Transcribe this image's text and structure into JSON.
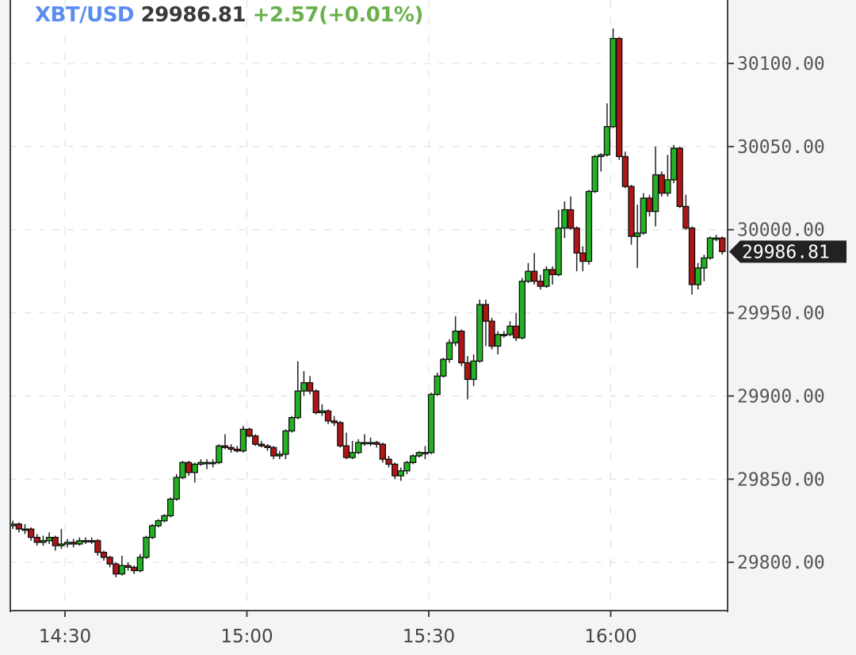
{
  "header": {
    "symbol": "XBT/USD",
    "last_price": "29986.81",
    "change": "+2.57(+0.01%)"
  },
  "colors": {
    "symbol": "#5b8def",
    "change": "#6ab04c",
    "up_candle": "#22b322",
    "down_candle": "#b01515",
    "price_tag": "#222222"
  },
  "chart_data": {
    "type": "candlestick",
    "symbol": "XBT/USD",
    "interval_minutes": 1,
    "start_time": "14:21",
    "ylim": [
      29771,
      30138
    ],
    "grid": true,
    "y_ticks": [
      "29800.00",
      "29850.00",
      "29900.00",
      "29950.00",
      "30000.00",
      "30050.00",
      "30100.00"
    ],
    "x_ticks": [
      "14:30",
      "15:00",
      "15:30",
      "16:00"
    ],
    "last_price_label": "29986.81",
    "ohlc": [
      [
        29822,
        29825,
        29820,
        29823
      ],
      [
        29823,
        29824,
        29818,
        29820
      ],
      [
        29820,
        29823,
        29817,
        29820
      ],
      [
        29820,
        29821,
        29813,
        29815
      ],
      [
        29815,
        29817,
        29810,
        29812
      ],
      [
        29812,
        29816,
        29810,
        29813
      ],
      [
        29813,
        29818,
        29811,
        29815
      ],
      [
        29815,
        29816,
        29807,
        29810
      ],
      [
        29810,
        29820,
        29808,
        29811
      ],
      [
        29811,
        29814,
        29809,
        29812
      ],
      [
        29812,
        29814,
        29809,
        29811
      ],
      [
        29811,
        29815,
        29810,
        29813
      ],
      [
        29813,
        29815,
        29811,
        29813
      ],
      [
        29813,
        29815,
        29811,
        29813
      ],
      [
        29813,
        29814,
        29804,
        29806
      ],
      [
        29806,
        29807,
        29801,
        29803
      ],
      [
        29803,
        29804,
        29797,
        29799
      ],
      [
        29799,
        29800,
        29791,
        29793
      ],
      [
        29793,
        29804,
        29792,
        29798
      ],
      [
        29798,
        29800,
        29795,
        29797
      ],
      [
        29797,
        29798,
        29793,
        29795
      ],
      [
        29795,
        29805,
        29794,
        29803
      ],
      [
        29803,
        29816,
        29802,
        29815
      ],
      [
        29815,
        29823,
        29814,
        29822
      ],
      [
        29822,
        29826,
        29821,
        29825
      ],
      [
        29825,
        29829,
        29824,
        29828
      ],
      [
        29828,
        29839,
        29827,
        29838
      ],
      [
        29838,
        29853,
        29837,
        29851
      ],
      [
        29851,
        29861,
        29850,
        29860
      ],
      [
        29860,
        29861,
        29852,
        29854
      ],
      [
        29854,
        29860,
        29848,
        29859
      ],
      [
        29859,
        29862,
        29858,
        29860
      ],
      [
        29860,
        29862,
        29856,
        29860
      ],
      [
        29860,
        29862,
        29857,
        29860
      ],
      [
        29860,
        29871,
        29859,
        29870
      ],
      [
        29870,
        29877,
        29868,
        29869
      ],
      [
        29869,
        29871,
        29866,
        29868
      ],
      [
        29868,
        29870,
        29866,
        29867
      ],
      [
        29867,
        29882,
        29866,
        29880
      ],
      [
        29880,
        29881,
        29875,
        29876
      ],
      [
        29876,
        29877,
        29870,
        29871
      ],
      [
        29871,
        29873,
        29869,
        29870
      ],
      [
        29870,
        29871,
        29867,
        29869
      ],
      [
        29869,
        29870,
        29862,
        29864
      ],
      [
        29864,
        29867,
        29862,
        29865
      ],
      [
        29865,
        29880,
        29862,
        29879
      ],
      [
        29879,
        29888,
        29878,
        29887
      ],
      [
        29887,
        29921,
        29886,
        29903
      ],
      [
        29903,
        29915,
        29900,
        29908
      ],
      [
        29908,
        29912,
        29901,
        29903
      ],
      [
        29903,
        29904,
        29889,
        29890
      ],
      [
        29890,
        29895,
        29888,
        29891
      ],
      [
        29891,
        29892,
        29883,
        29885
      ],
      [
        29885,
        29888,
        29882,
        29884
      ],
      [
        29884,
        29885,
        29869,
        29870
      ],
      [
        29870,
        29878,
        29862,
        29863
      ],
      [
        29863,
        29873,
        29862,
        29866
      ],
      [
        29866,
        29874,
        29865,
        29872
      ],
      [
        29872,
        29877,
        29870,
        29872
      ],
      [
        29872,
        29875,
        29870,
        29872
      ],
      [
        29872,
        29873,
        29869,
        29871
      ],
      [
        29871,
        29872,
        29860,
        29862
      ],
      [
        29862,
        29864,
        29857,
        29859
      ],
      [
        29859,
        29860,
        29850,
        29852
      ],
      [
        29852,
        29857,
        29849,
        29855
      ],
      [
        29855,
        29861,
        29853,
        29860
      ],
      [
        29860,
        29865,
        29859,
        29864
      ],
      [
        29864,
        29867,
        29863,
        29866
      ],
      [
        29866,
        29870,
        29862,
        29866
      ],
      [
        29866,
        29902,
        29865,
        29901
      ],
      [
        29901,
        29914,
        29900,
        29912
      ],
      [
        29912,
        29923,
        29911,
        29922
      ],
      [
        29922,
        29934,
        29920,
        29932
      ],
      [
        29932,
        29948,
        29930,
        29939
      ],
      [
        29939,
        29940,
        29918,
        29920
      ],
      [
        29920,
        29924,
        29898,
        29910
      ],
      [
        29910,
        29925,
        29906,
        29921
      ],
      [
        29921,
        29958,
        29920,
        29955
      ],
      [
        29955,
        29958,
        29930,
        29945
      ],
      [
        29945,
        29947,
        29928,
        29930
      ],
      [
        29930,
        29939,
        29925,
        29937
      ],
      [
        29937,
        29939,
        29935,
        29937
      ],
      [
        29937,
        29945,
        29936,
        29942
      ],
      [
        29942,
        29950,
        29933,
        29935
      ],
      [
        29935,
        29971,
        29934,
        29969
      ],
      [
        29969,
        29980,
        29968,
        29975
      ],
      [
        29975,
        29986,
        29967,
        29969
      ],
      [
        29969,
        29973,
        29964,
        29966
      ],
      [
        29966,
        29978,
        29965,
        29976
      ],
      [
        29976,
        29978,
        29967,
        29973
      ],
      [
        29973,
        30012,
        29972,
        30001
      ],
      [
        30001,
        30017,
        29995,
        30012
      ],
      [
        30012,
        30020,
        30000,
        30001
      ],
      [
        30001,
        30002,
        29975,
        29986
      ],
      [
        29986,
        29990,
        29975,
        29981
      ],
      [
        29981,
        30024,
        29979,
        30023
      ],
      [
        30023,
        30045,
        30022,
        30044
      ],
      [
        30044,
        30046,
        30035,
        30045
      ],
      [
        30045,
        30076,
        30044,
        30062
      ],
      [
        30062,
        30121,
        30061,
        30115
      ],
      [
        30115,
        30116,
        30042,
        30044
      ],
      [
        30044,
        30047,
        30025,
        30026
      ],
      [
        30026,
        30027,
        29991,
        29996
      ],
      [
        29996,
        30015,
        29977,
        29998
      ],
      [
        29998,
        30022,
        29997,
        30019
      ],
      [
        30019,
        30021,
        30008,
        30011
      ],
      [
        30011,
        30050,
        30002,
        30033
      ],
      [
        30033,
        30035,
        30020,
        30022
      ],
      [
        30022,
        30045,
        30020,
        30030
      ],
      [
        30030,
        30051,
        30028,
        30049
      ],
      [
        30049,
        30050,
        30013,
        30014
      ],
      [
        30014,
        30021,
        30000,
        30001
      ],
      [
        30001,
        30002,
        29961,
        29967
      ],
      [
        29967,
        29980,
        29964,
        29977
      ],
      [
        29977,
        29985,
        29969,
        29983
      ],
      [
        29983,
        29996,
        29982,
        29995
      ],
      [
        29995,
        29997,
        29993,
        29995
      ],
      [
        29995,
        29996,
        29985,
        29986.81
      ]
    ]
  }
}
